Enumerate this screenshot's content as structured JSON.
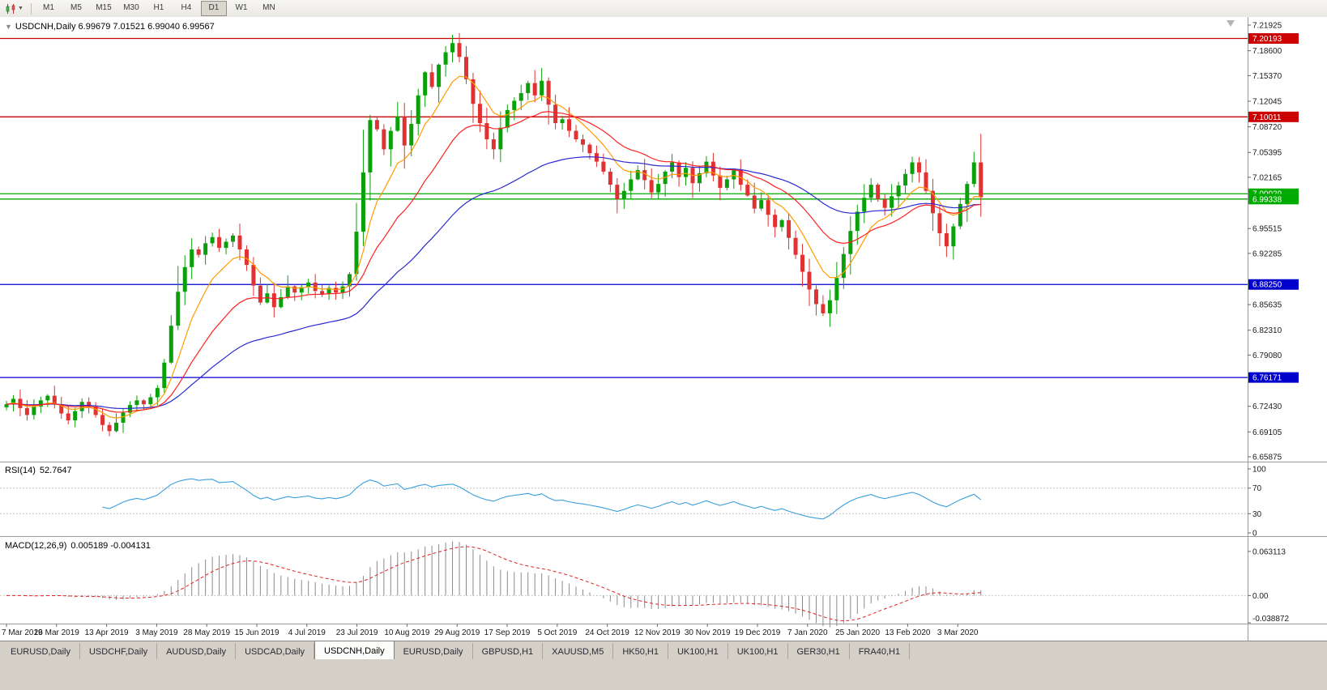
{
  "toolbar": {
    "chart_type_icon": "candlestick-chart-icon",
    "dropdown_icon": "chevron-down",
    "timeframes": [
      "M1",
      "M5",
      "M15",
      "M30",
      "H1",
      "H4",
      "D1",
      "W1",
      "MN"
    ],
    "active_timeframe": "D1"
  },
  "chart_header": {
    "collapse_icon": "▼",
    "symbol": "USDCNH,Daily",
    "ohlc": "6.99679 7.01521 6.99040 6.99567"
  },
  "indicators": {
    "rsi": {
      "label": "RSI(14)",
      "value": "52.7647"
    },
    "macd": {
      "label": "MACD(12,26,9)",
      "value": "0.005189 -0.004131"
    }
  },
  "chart_data": [
    {
      "type": "candlestick",
      "title": "USDCNH,Daily",
      "ylim": [
        6.6535,
        7.2277
      ],
      "y_ticks": [
        "7.21925",
        "7.18600",
        "7.15370",
        "7.12045",
        "7.08720",
        "7.05395",
        "7.02165",
        "6.95515",
        "6.92285",
        "6.85635",
        "6.82310",
        "6.79080",
        "6.72430",
        "6.69105",
        "6.65875"
      ],
      "x_labels": [
        "7 Mar 2019",
        "26 Mar 2019",
        "13 Apr 2019",
        "3 May 2019",
        "28 May 2019",
        "15 Jun 2019",
        "4 Jul 2019",
        "23 Jul 2019",
        "10 Aug 2019",
        "29 Aug 2019",
        "17 Sep 2019",
        "5 Oct 2019",
        "24 Oct 2019",
        "12 Nov 2019",
        "30 Nov 2019",
        "19 Dec 2019",
        "7 Jan 2020",
        "25 Jan 2020",
        "13 Feb 2020",
        "3 Mar 2020"
      ],
      "closes": [
        6.727,
        6.734,
        6.722,
        6.713,
        6.724,
        6.732,
        6.738,
        6.727,
        6.715,
        6.706,
        6.718,
        6.73,
        6.724,
        6.713,
        6.7,
        6.692,
        6.703,
        6.716,
        6.726,
        6.732,
        6.727,
        6.736,
        6.748,
        6.781,
        6.829,
        6.873,
        6.905,
        6.928,
        6.921,
        6.936,
        6.944,
        6.93,
        6.938,
        6.946,
        6.928,
        6.908,
        6.881,
        6.859,
        6.871,
        6.853,
        6.866,
        6.88,
        6.872,
        6.879,
        6.885,
        6.874,
        6.87,
        6.878,
        6.872,
        6.88,
        6.896,
        6.951,
        7.028,
        7.096,
        7.084,
        7.058,
        7.082,
        7.101,
        7.063,
        7.091,
        7.128,
        7.158,
        7.139,
        7.168,
        7.184,
        7.196,
        7.178,
        7.149,
        7.117,
        7.092,
        7.071,
        7.058,
        7.086,
        7.109,
        7.121,
        7.131,
        7.144,
        7.128,
        7.147,
        7.116,
        7.092,
        7.097,
        7.082,
        7.071,
        7.064,
        7.053,
        7.042,
        7.029,
        7.012,
        6.993,
        7.004,
        7.019,
        7.031,
        7.018,
        7.002,
        7.013,
        7.029,
        7.041,
        7.022,
        7.034,
        7.014,
        7.027,
        7.042,
        7.024,
        7.008,
        7.019,
        7.031,
        7.012,
        6.998,
        6.981,
        6.992,
        6.973,
        6.957,
        6.966,
        6.943,
        6.921,
        6.899,
        6.876,
        6.857,
        6.845,
        6.862,
        6.891,
        6.922,
        6.952,
        6.977,
        6.995,
        7.012,
        6.993,
        6.982,
        6.997,
        7.011,
        7.026,
        7.041,
        7.028,
        7.004,
        6.975,
        6.949,
        6.932,
        6.958,
        6.987,
        7.013,
        7.041,
        6.99567
      ],
      "up_color": "#0aa00a",
      "down_color": "#e03232",
      "moving_averages": [
        {
          "period": 8,
          "color": "#ff9b00"
        },
        {
          "period": 45,
          "color": "#2a2ad0"
        },
        {
          "period": 20,
          "color": "#ff2020"
        }
      ],
      "h_lines": [
        {
          "value": 7.20193,
          "label": "7.20193",
          "color": "#cc0000"
        },
        {
          "value": 7.10011,
          "label": "7.10011",
          "color": "#cc0000"
        },
        {
          "value": 7.00029,
          "label": "7.00029",
          "color": "#00aa00"
        },
        {
          "value": 6.99338,
          "label": "6.99338",
          "color": "#00aa00"
        },
        {
          "value": 6.8825,
          "label": "6.88250",
          "color": "#0000cc"
        },
        {
          "value": 6.76171,
          "label": "6.76171",
          "color": "#0000cc"
        }
      ]
    },
    {
      "type": "line",
      "indicator": "RSI",
      "params": [
        14
      ],
      "current_value": 52.7647,
      "source": "derived from candlestick closes",
      "levels": [
        70,
        30
      ],
      "y_ticks": [
        "100",
        "70",
        "30",
        "0"
      ],
      "ylim": [
        0,
        100
      ],
      "line_color": "#3a9fdc"
    },
    {
      "type": "bar",
      "indicator": "MACD",
      "params": [
        12,
        26,
        9
      ],
      "current_values": [
        0.005189,
        -0.004131
      ],
      "source": "derived from candlestick closes",
      "y_ticks": [
        "0.063113",
        "0.00",
        "-0.038872"
      ],
      "ylim": [
        -0.0389,
        0.0827
      ],
      "histogram_color": "#8a8a8a",
      "signal_color": "#e02020",
      "signal_style": "dashed"
    }
  ],
  "tabbar": {
    "tabs": [
      {
        "label": "EURUSD,Daily"
      },
      {
        "label": "USDCHF,Daily"
      },
      {
        "label": "AUDUSD,Daily"
      },
      {
        "label": "USDCAD,Daily"
      },
      {
        "label": "USDCNH,Daily",
        "active": true
      },
      {
        "label": "EURUSD,Daily"
      },
      {
        "label": "GBPUSD,H1"
      },
      {
        "label": "XAUUSD,M5"
      },
      {
        "label": "HK50,H1"
      },
      {
        "label": "UK100,H1"
      },
      {
        "label": "UK100,H1"
      },
      {
        "label": "GER30,H1"
      },
      {
        "label": "FRA40,H1"
      }
    ]
  }
}
